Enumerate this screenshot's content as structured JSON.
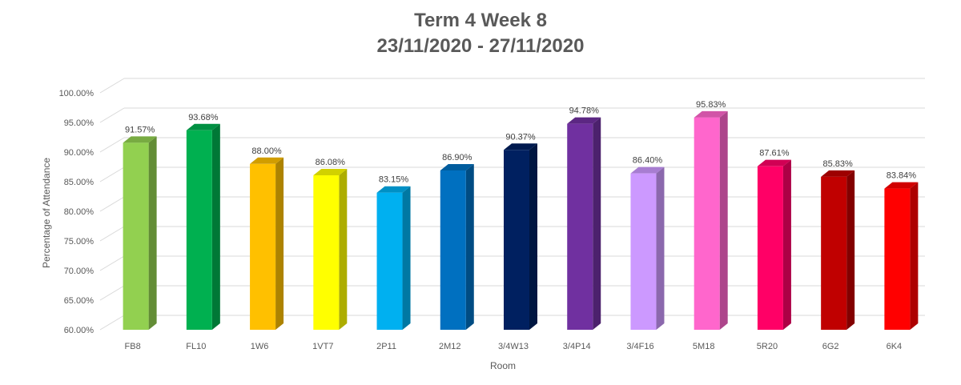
{
  "chart_data": {
    "type": "bar",
    "title": "Term 4 Week 8",
    "subtitle": "23/11/2020 - 27/11/2020",
    "xlabel": "Room",
    "ylabel": "Percentage of Attendance",
    "ylim": [
      60,
      100
    ],
    "yticks": [
      60,
      65,
      70,
      75,
      80,
      85,
      90,
      95,
      100
    ],
    "ytick_labels": [
      "60.00%",
      "65.00%",
      "70.00%",
      "75.00%",
      "80.00%",
      "85.00%",
      "90.00%",
      "95.00%",
      "100.00%"
    ],
    "grid": true,
    "style": "3d-column",
    "categories": [
      "FB8",
      "FL10",
      "1W6",
      "1VT7",
      "2P11",
      "2M12",
      "3/4W13",
      "3/4P14",
      "3/4F16",
      "5M18",
      "5R20",
      "6G2",
      "6K4"
    ],
    "values": [
      91.57,
      93.68,
      88.0,
      86.08,
      83.15,
      86.9,
      90.37,
      94.78,
      86.4,
      95.83,
      87.61,
      85.83,
      83.84
    ],
    "data_labels": [
      "91.57%",
      "93.68%",
      "88.00%",
      "86.08%",
      "83.15%",
      "86.90%",
      "90.37%",
      "94.78%",
      "86.40%",
      "95.83%",
      "87.61%",
      "85.83%",
      "83.84%"
    ],
    "colors": [
      "#92D050",
      "#00B050",
      "#FFC000",
      "#FFFF00",
      "#00B0F0",
      "#0070C0",
      "#002060",
      "#7030A0",
      "#CC99FF",
      "#FF66CC",
      "#FF0066",
      "#C00000",
      "#FF0000"
    ]
  }
}
